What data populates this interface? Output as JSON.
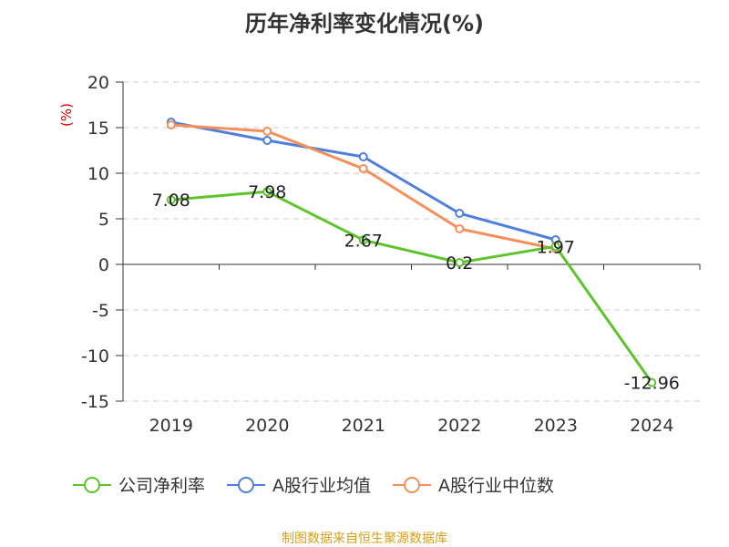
{
  "chart_data": {
    "type": "line",
    "title": "历年净利率变化情况(%)",
    "ylabel": "(%)",
    "categories": [
      "2019",
      "2020",
      "2021",
      "2022",
      "2023",
      "2024"
    ],
    "ylim": [
      -15,
      20
    ],
    "yticks": [
      20,
      15,
      10,
      5,
      0,
      -5,
      -10,
      -15
    ],
    "grid": true,
    "legend_position": "bottom",
    "series": [
      {
        "name": "公司净利率",
        "color": "#5ec42b",
        "values": [
          7.08,
          7.98,
          2.67,
          0.2,
          1.97,
          -12.96
        ],
        "labels": [
          "7.08",
          "7.98",
          "2.67",
          "0.2",
          "1.97",
          "-12.96"
        ]
      },
      {
        "name": "A股行业均值",
        "color": "#4f7fdc",
        "values": [
          15.6,
          13.6,
          11.8,
          5.6,
          2.7,
          null
        ]
      },
      {
        "name": "A股行业中位数",
        "color": "#f58f5a",
        "values": [
          15.3,
          14.6,
          10.5,
          3.9,
          1.7,
          null
        ]
      }
    ]
  },
  "source": "制图数据来自恒生聚源数据库"
}
